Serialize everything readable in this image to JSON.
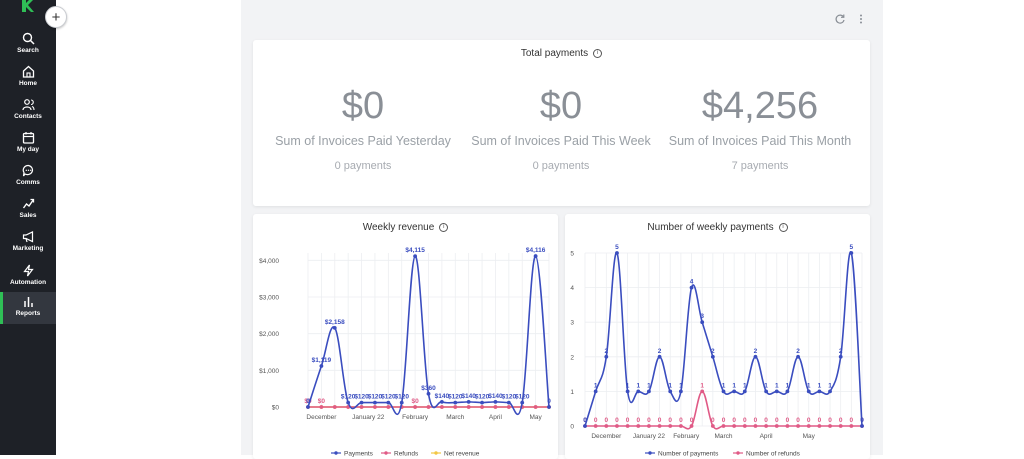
{
  "sidebar": {
    "add_label": "+",
    "items": [
      {
        "label": "Search",
        "icon": "search-icon"
      },
      {
        "label": "Home",
        "icon": "home-icon"
      },
      {
        "label": "Contacts",
        "icon": "contacts-icon"
      },
      {
        "label": "My day",
        "icon": "calendar-icon"
      },
      {
        "label": "Comms",
        "icon": "chat-icon"
      },
      {
        "label": "Sales",
        "icon": "sales-icon"
      },
      {
        "label": "Marketing",
        "icon": "megaphone-icon"
      },
      {
        "label": "Automation",
        "icon": "bolt-icon"
      },
      {
        "label": "Reports",
        "icon": "bar-chart-icon",
        "active": true
      }
    ]
  },
  "toolbar": {
    "refresh_icon": "refresh-icon",
    "menu_icon": "more-vertical-icon"
  },
  "total_payments": {
    "title": "Total payments",
    "stats": [
      {
        "value": "$0",
        "label": "Sum of Invoices Paid Yesterday",
        "count": "0 payments"
      },
      {
        "value": "$0",
        "label": "Sum of Invoices Paid This Week",
        "count": "0 payments"
      },
      {
        "value": "$4,256",
        "label": "Sum of Invoices Paid This Month",
        "count": "7 payments"
      }
    ]
  },
  "colors": {
    "blue": "#3a4dbf",
    "pink": "#e05a86",
    "yellow": "#f2c744",
    "grid": "#e8e9ec"
  },
  "chart_data": [
    {
      "type": "line",
      "title": "Weekly revenue",
      "ylim": [
        0,
        4200
      ],
      "yticks": [
        0,
        1000,
        2000,
        3000,
        4000
      ],
      "ytick_labels": [
        "$0",
        "$1,000",
        "$2,000",
        "$3,000",
        "$4,000"
      ],
      "xtick_labels": [
        "December",
        "January 22",
        "February",
        "March",
        "April",
        "May"
      ],
      "xtick_index": [
        1,
        4.5,
        8,
        11,
        14,
        17
      ],
      "series": [
        {
          "name": "Payments",
          "color": "#3a4dbf",
          "values": [
            0,
            1119,
            2158,
            120,
            120,
            120,
            120,
            120,
            4115,
            360,
            140,
            120,
            140,
            120,
            140,
            120,
            120,
            4116,
            0
          ],
          "labels": [
            "0",
            "$1,119",
            "$2,158",
            "$120",
            "$120",
            "$120",
            "$120",
            "$120",
            "$4,115",
            "$360",
            "$140",
            "$120",
            "$140",
            "$120",
            "$140",
            "$120",
            "$120",
            "$4,116",
            "0"
          ]
        },
        {
          "name": "Refunds",
          "color": "#e05a86",
          "values": [
            0,
            0,
            0,
            0,
            0,
            0,
            0,
            0,
            0,
            0,
            0,
            0,
            0,
            0,
            0,
            0,
            0,
            0,
            0
          ],
          "labels": [
            "$0",
            "$0",
            "",
            "",
            "",
            "",
            "",
            "",
            "$0",
            "",
            "",
            "",
            "",
            "",
            "",
            "",
            "",
            "",
            ""
          ]
        },
        {
          "name": "Net revenue",
          "color": "#f2c744",
          "values": [
            0,
            0,
            0,
            0,
            0,
            0,
            0,
            0,
            0,
            0,
            0,
            0,
            0,
            0,
            0,
            0,
            0,
            0,
            0
          ],
          "labels": []
        }
      ]
    },
    {
      "type": "line",
      "title": "Number of weekly payments",
      "ylim": [
        0,
        5
      ],
      "yticks": [
        0,
        1,
        2,
        3,
        4,
        5
      ],
      "ytick_labels": [
        "0",
        "1",
        "2",
        "3",
        "4",
        "5"
      ],
      "xtick_labels": [
        "December",
        "January 22",
        "February",
        "March",
        "April",
        "May"
      ],
      "xtick_index": [
        2,
        6,
        9.5,
        13,
        17,
        21
      ],
      "series": [
        {
          "name": "Number of payments",
          "color": "#3a4dbf",
          "values": [
            0,
            1,
            2,
            5,
            1,
            1,
            1,
            2,
            1,
            1,
            4,
            3,
            2,
            1,
            1,
            1,
            2,
            1,
            1,
            1,
            2,
            1,
            1,
            1,
            2,
            5,
            0
          ],
          "labels": [
            "0",
            "1",
            "2",
            "5",
            "1",
            "1",
            "1",
            "2",
            "1",
            "1",
            "4",
            "3",
            "2",
            "1",
            "1",
            "1",
            "2",
            "1",
            "1",
            "1",
            "2",
            "1",
            "1",
            "1",
            "2",
            "5",
            "0"
          ]
        },
        {
          "name": "Number of refunds",
          "color": "#e05a86",
          "values": [
            0,
            0,
            0,
            0,
            0,
            0,
            0,
            0,
            0,
            0,
            0,
            1,
            0,
            0,
            0,
            0,
            0,
            0,
            0,
            0,
            0,
            0,
            0,
            0,
            0,
            0,
            0
          ],
          "labels": [
            "0",
            "0",
            "0",
            "0",
            "0",
            "0",
            "0",
            "0",
            "0",
            "0",
            "0",
            "1",
            "0",
            "0",
            "0",
            "0",
            "0",
            "0",
            "0",
            "0",
            "0",
            "0",
            "0",
            "0",
            "0",
            "0",
            "0"
          ]
        }
      ]
    }
  ]
}
